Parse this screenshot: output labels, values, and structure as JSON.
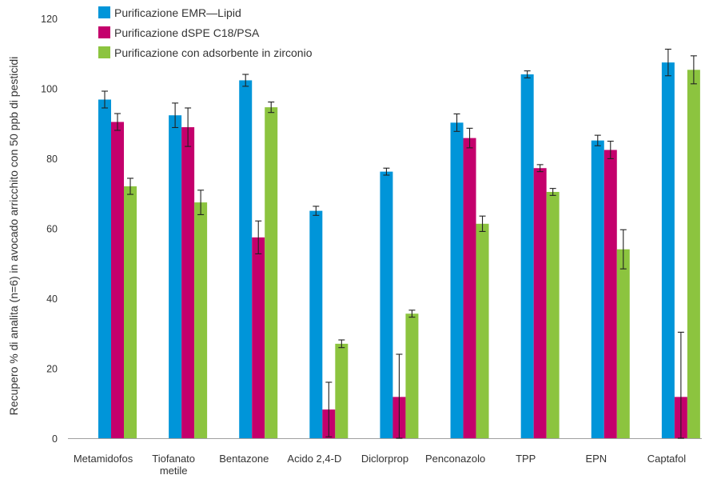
{
  "chart_data": {
    "type": "bar",
    "ylabel": "Recupero % di analita (n=6) in avocado arricchito con 50 ppb di pesticidi",
    "ylim": [
      0,
      120
    ],
    "yticks": [
      0,
      20,
      40,
      60,
      80,
      100,
      120
    ],
    "grid": false,
    "legend_position": "top-left",
    "categories": [
      [
        "Metamidofos"
      ],
      [
        "Tiofanato",
        "metile"
      ],
      [
        "Bentazone"
      ],
      [
        "Acido 2,4-D"
      ],
      [
        "Diclorprop"
      ],
      [
        "Penconazolo"
      ],
      [
        "TPP"
      ],
      [
        "EPN"
      ],
      [
        "Captafol"
      ]
    ],
    "series": [
      {
        "name": "Purificazione EMR—Lipid",
        "color": "#0095d9",
        "values": [
          96.8,
          92.3,
          102.3,
          65.0,
          76.2,
          90.2,
          104.0,
          85.1,
          107.4
        ],
        "errors": [
          2.4,
          3.5,
          1.7,
          1.3,
          1.0,
          2.5,
          1.0,
          1.5,
          3.8
        ]
      },
      {
        "name": "Purificazione dSPE C18/PSA",
        "color": "#c4006c",
        "values": [
          90.4,
          88.9,
          57.4,
          8.2,
          11.8,
          85.8,
          77.2,
          82.4,
          11.8
        ],
        "errors": [
          2.4,
          5.5,
          4.7,
          7.8,
          12.2,
          2.8,
          1.0,
          2.5,
          18.5
        ]
      },
      {
        "name": "Purificazione con adsorbente in zirconio",
        "color": "#8cc43f",
        "values": [
          72.0,
          67.4,
          94.6,
          27.0,
          35.6,
          61.3,
          70.4,
          54.0,
          105.3
        ],
        "errors": [
          2.3,
          3.5,
          1.5,
          1.1,
          1.0,
          2.2,
          1.0,
          5.6,
          4.0
        ]
      }
    ]
  }
}
